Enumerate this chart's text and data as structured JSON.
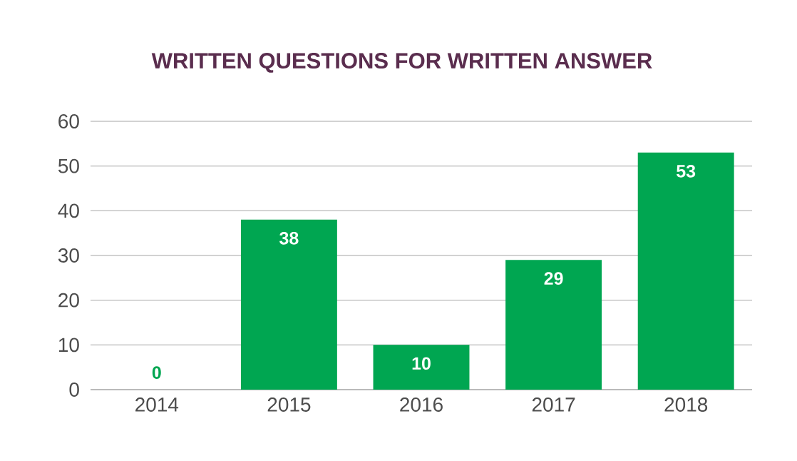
{
  "chart_data": {
    "type": "bar",
    "title": "WRITTEN QUESTIONS FOR WRITTEN ANSWER",
    "categories": [
      "2014",
      "2015",
      "2016",
      "2017",
      "2018"
    ],
    "values": [
      0,
      38,
      10,
      29,
      53
    ],
    "color": "#00a651",
    "ylim": [
      0,
      60
    ],
    "yticks": [
      0,
      10,
      20,
      30,
      40,
      50,
      60
    ],
    "grid": "y",
    "data_labels": true
  }
}
